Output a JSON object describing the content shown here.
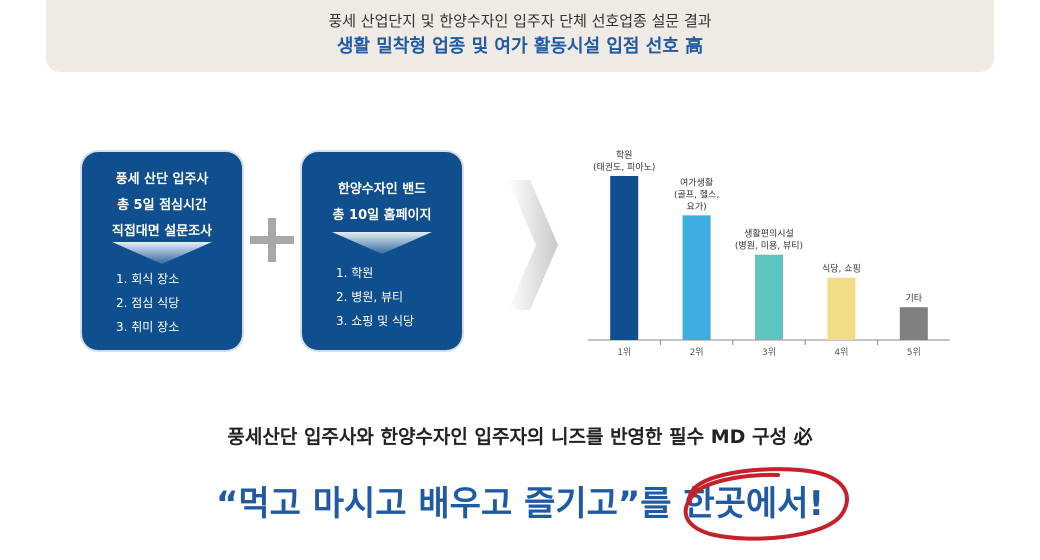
{
  "banner": {
    "subtitle": "풍세 산업단지 및 한양수자인 입주자 단체 선호업종 설문 결과",
    "title": "생활 밀착형 업종 및 여가 활동시설 입점 선호 高"
  },
  "card_left": {
    "line1": "풍세 산단 입주사",
    "line2": "총 5일 점심시간",
    "line3": "직접대면 설문조사",
    "items": [
      "1. 회식 장소",
      "2. 점심 식당",
      "3. 취미 장소"
    ]
  },
  "card_right": {
    "line1": "한양수자인 밴드",
    "line2": "총 10일 홈페이지",
    "items": [
      "1. 학원",
      "2. 병원, 뷰티",
      "3. 쇼핑 및 식당"
    ]
  },
  "chart_data": {
    "type": "bar",
    "categories": [
      "1위",
      "2위",
      "3위",
      "4위",
      "5위"
    ],
    "bar_labels": [
      [
        "학원",
        "(태권도, 피아노)"
      ],
      [
        "여가생활",
        "(골프, 헬스,",
        "요가)"
      ],
      [
        "생활편의시설",
        "(병원, 미용, 뷰티)"
      ],
      [
        "식당, 쇼핑"
      ],
      [
        "기타"
      ]
    ],
    "values": [
      100,
      76,
      52,
      38,
      20
    ],
    "ylim": [
      0,
      100
    ],
    "colors": [
      "#0f4f8e",
      "#3eaee0",
      "#5cc6be",
      "#f2dc86",
      "#808080"
    ],
    "grid": false
  },
  "needs_text": "풍세산단 입주사와 한양수자인 입주자의 니즈를 반영한 필수 MD 구성 必",
  "slogan": {
    "main": "“먹고 마시고 배우고 즐기고”를 ",
    "highlight": "한곳에서!"
  },
  "colors": {
    "brand_blue": "#1f5aa5",
    "card_navy": "#0f4f8e",
    "circle_red": "#c8202a"
  }
}
